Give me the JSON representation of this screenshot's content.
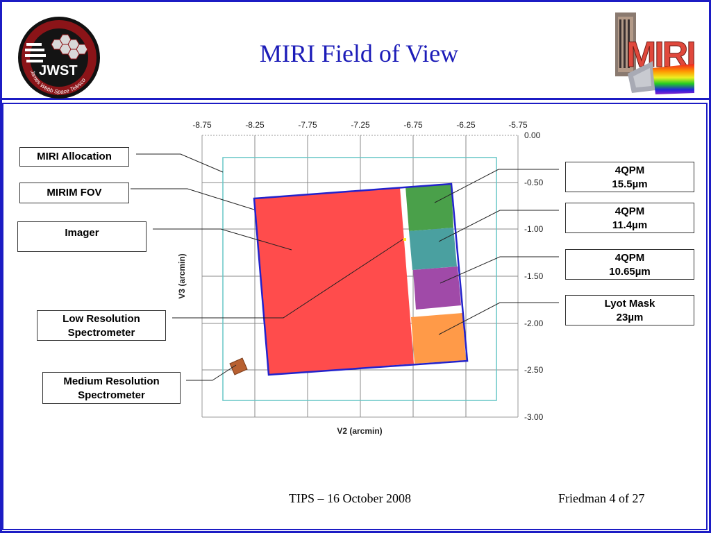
{
  "title": "MIRI Field of View",
  "logos": {
    "jwst_text": "James Webb Space Telescope",
    "jwst_mark": "JWST",
    "miri_mark": "MIRI"
  },
  "chart": {
    "xlabel": "V2 (arcmin)",
    "ylabel": "V3 (arcmin)",
    "xticks": [
      "-8.75",
      "-8.25",
      "-7.75",
      "-7.25",
      "-6.75",
      "-6.25",
      "-5.75"
    ],
    "yticks": [
      "0.00",
      "-0.50",
      "-1.00",
      "-1.50",
      "-2.00",
      "-2.50",
      "-3.00"
    ]
  },
  "labels_left": {
    "miri_allocation": "MIRI Allocation",
    "mirim_fov": "MIRIM FOV",
    "imager": "Imager",
    "lrs_line1": "Low Resolution",
    "lrs_line2": "Spectrometer",
    "mrs_line1": "Medium Resolution",
    "mrs_line2": "Spectrometer"
  },
  "labels_right": {
    "qpm1_line1": "4QPM",
    "qpm1_line2": "15.5µm",
    "qpm2_line1": "4QPM",
    "qpm2_line2": "11.4µm",
    "qpm3_line1": "4QPM",
    "qpm3_line2": "10.65µm",
    "lyot_line1": "Lyot Mask",
    "lyot_line2": "23µm"
  },
  "colors": {
    "imager": "#ff4c4c",
    "qpm_15_5": "#4aa04a",
    "qpm_11_4": "#4aa0a0",
    "qpm_10_65": "#a04aa8",
    "lyot": "#ff9a48",
    "mrs": "#b86030",
    "allocation": "#66c6c6",
    "mirim_outline": "#2222cc",
    "frame": "#1c1cc4"
  },
  "footer": {
    "center": "TIPS – 16 October 2008",
    "right": "Friedman 4 of 27"
  }
}
